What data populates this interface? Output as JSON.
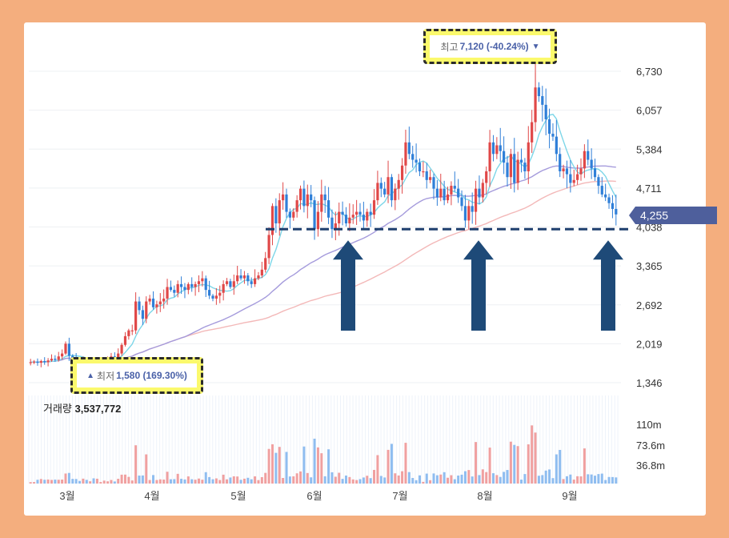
{
  "chart_data": {
    "type": "candlestick",
    "y_ticks": [
      "6,730",
      "6,057",
      "5,384",
      "4,711",
      "4,038",
      "3,365",
      "2,692",
      "2,019",
      "1,346"
    ],
    "y_tick_values": [
      6730,
      6057,
      5384,
      4711,
      4038,
      3365,
      2692,
      2019,
      1346
    ],
    "ylim": [
      1200,
      7350
    ],
    "x_labels": [
      "3월",
      "4월",
      "5월",
      "6월",
      "7월",
      "8월",
      "9월"
    ],
    "current_price": "4,255",
    "high": {
      "label": "최고",
      "value": "7,120 (-40.24%)"
    },
    "low": {
      "label": "최저",
      "value": "1,580 (169.30%)"
    },
    "volume": {
      "label": "거래량",
      "value": "3,537,772",
      "ticks": [
        "110m",
        "73.6m",
        "36.8m"
      ],
      "tick_values": [
        110,
        73.6,
        36.8
      ]
    },
    "support_level": 4000,
    "colors": {
      "up": "#e04848",
      "down": "#2f7fd8",
      "ma_short": "#7dd6e8",
      "ma_mid": "#a59bdc",
      "ma_long": "#f3b8b8",
      "support": "#1e3f6e",
      "arrow": "#1e4a78",
      "highlight": "#fbf96c"
    },
    "price_path": [
      1700,
      1710,
      1690,
      1720,
      1700,
      1730,
      1760,
      1740,
      1800,
      1850,
      2020,
      1810,
      1760,
      1700,
      1680,
      1720,
      1690,
      1710,
      1650,
      1700,
      1710,
      1740,
      1760,
      1800,
      1780,
      1850,
      2000,
      2150,
      2250,
      2250,
      2750,
      2600,
      2450,
      2750,
      2800,
      2650,
      2700,
      2750,
      2800,
      3000,
      2950,
      2900,
      3050,
      3000,
      2950,
      3050,
      3000,
      3050,
      3100,
      3150,
      2950,
      2850,
      2800,
      2850,
      2900,
      3050,
      3100,
      3000,
      3100,
      3200,
      3150,
      3200,
      3100,
      3050,
      3150,
      3200,
      3300,
      3500,
      3900,
      4400,
      4100,
      4500,
      4600,
      4300,
      4200,
      4300,
      4500,
      4700,
      4400,
      4600,
      4500,
      4000,
      4300,
      4600,
      4500,
      4200,
      4000,
      4100,
      4300,
      4250,
      4100,
      4200,
      4250,
      4300,
      4250,
      4150,
      4300,
      4250,
      4500,
      4800,
      4700,
      4600,
      4900,
      4500,
      4700,
      4850,
      5100,
      5500,
      5300,
      5200,
      5150,
      5000,
      5000,
      4850,
      4900,
      4700,
      4550,
      4700,
      4500,
      4600,
      4750,
      4700,
      4550,
      4400,
      4150,
      4400,
      4300,
      4700,
      4550,
      4800,
      5000,
      5500,
      5300,
      5450,
      5350,
      5150,
      4900,
      5300,
      4800,
      5200,
      5150,
      5000,
      5500,
      5850,
      6450,
      6300,
      6150,
      5900,
      5650,
      5600,
      5300,
      5000,
      5050,
      4950,
      4800,
      4850,
      4950,
      5050,
      5350,
      5200,
      5050,
      4900,
      4750,
      4600,
      4550,
      4450,
      4350,
      4255
    ]
  }
}
